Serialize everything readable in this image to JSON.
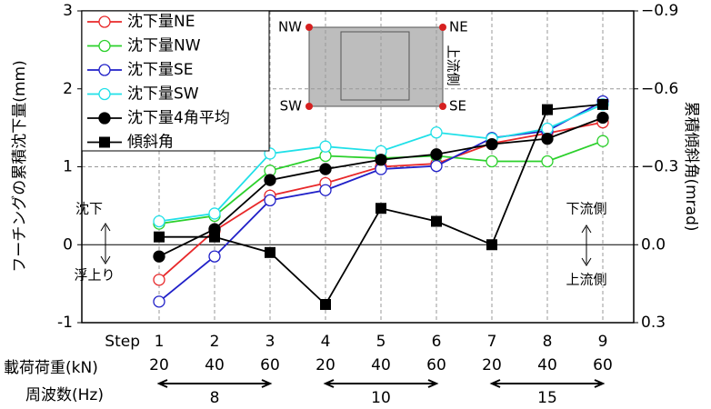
{
  "chart_data": {
    "type": "line",
    "y_label": "フーチングの累積沈下量(mm)",
    "y2_label": "累積傾斜角(mrad)",
    "categories": [
      "1",
      "2",
      "3",
      "4",
      "5",
      "6",
      "7",
      "8",
      "9"
    ],
    "ylim": [
      -1,
      3
    ],
    "yticks": [
      -1,
      0,
      1,
      2,
      3
    ],
    "y2lim": [
      0.3,
      -0.9
    ],
    "y2ticks": [
      {
        "value": -0.9,
        "label": "−0.9"
      },
      {
        "value": -0.6,
        "label": "−0.6"
      },
      {
        "value": -0.3,
        "label": "−0.3"
      },
      {
        "value": 0,
        "label": "0.0"
      },
      0.3
    ],
    "grid": true,
    "series": [
      {
        "name": "沈下量NE",
        "color": "#e8282a",
        "marker": "open-circle",
        "values": [
          -0.45,
          0.18,
          0.63,
          0.79,
          1.0,
          1.04,
          1.3,
          1.43,
          1.57
        ]
      },
      {
        "name": "沈下量NW",
        "color": "#2bd02b",
        "marker": "open-circle",
        "values": [
          0.27,
          0.37,
          0.95,
          1.14,
          1.11,
          1.14,
          1.07,
          1.07,
          1.33
        ]
      },
      {
        "name": "沈下量SE",
        "color": "#2020c8",
        "marker": "open-circle",
        "values": [
          -0.73,
          -0.15,
          0.57,
          0.7,
          0.97,
          1.01,
          1.37,
          1.46,
          1.84
        ]
      },
      {
        "name": "沈下量SW",
        "color": "#1fe0e8",
        "marker": "open-circle",
        "values": [
          0.3,
          0.4,
          1.17,
          1.26,
          1.2,
          1.44,
          1.36,
          1.49,
          1.8
        ]
      },
      {
        "name": "沈下量4角平均",
        "color": "#000000",
        "marker": "filled-circle",
        "values": [
          -0.15,
          0.2,
          0.83,
          0.97,
          1.09,
          1.16,
          1.29,
          1.36,
          1.63
        ]
      },
      {
        "name": "傾斜角",
        "color": "#000000",
        "marker": "square",
        "axis": "y2",
        "values": [
          -0.03,
          -0.03,
          0.03,
          0.23,
          -0.14,
          -0.09,
          0,
          -0.52,
          -0.54
        ]
      }
    ],
    "annotations": {
      "down": "沈下",
      "up": "浮上り",
      "downstream": "下流側",
      "upstream": "上流側"
    },
    "diagram": {
      "nw": "NW",
      "ne": "NE",
      "sw": "SW",
      "se": "SE",
      "side": "上流側"
    },
    "step_label": "Step",
    "load_label": "載荷荷重(kN)",
    "loads": [
      20,
      40,
      60,
      20,
      40,
      60,
      20,
      40,
      60
    ],
    "freq_label": "周波数(Hz)",
    "freqs": [
      8,
      10,
      15
    ]
  }
}
